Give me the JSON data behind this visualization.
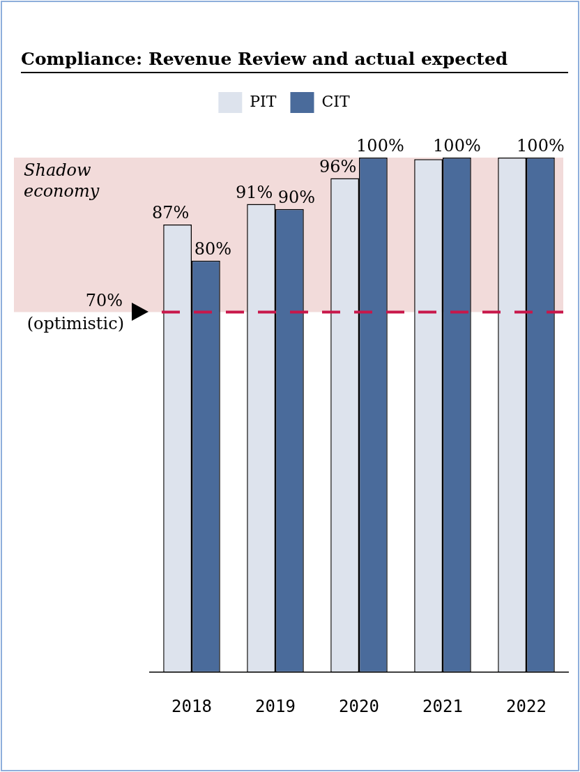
{
  "chart_data": {
    "type": "bar",
    "title": "Compliance: Revenue Review and actual expected",
    "categories": [
      "2018",
      "2019",
      "2020",
      "2021",
      "2022"
    ],
    "series": [
      {
        "name": "PIT",
        "color": "#dde3ed",
        "values": [
          87,
          91,
          96,
          99.7,
          100
        ],
        "value_labels": [
          "87%",
          "91%",
          "96%",
          null,
          null
        ]
      },
      {
        "name": "CIT",
        "color": "#4a6b9b",
        "values": [
          80,
          90,
          100,
          100,
          100
        ],
        "value_labels": [
          "80%",
          "90%",
          "100%",
          "100%",
          "100%"
        ]
      }
    ],
    "bands": [
      {
        "axis": "y",
        "from": 70,
        "to": 100,
        "label": "Shadow economy",
        "color": "#f2dbda"
      }
    ],
    "ref_lines": [
      {
        "axis": "y",
        "value": 70,
        "label": "70%\n(optimistic)",
        "color": "#c8174a",
        "line_style": "dashed"
      }
    ],
    "legend": "top",
    "grid": false
  }
}
